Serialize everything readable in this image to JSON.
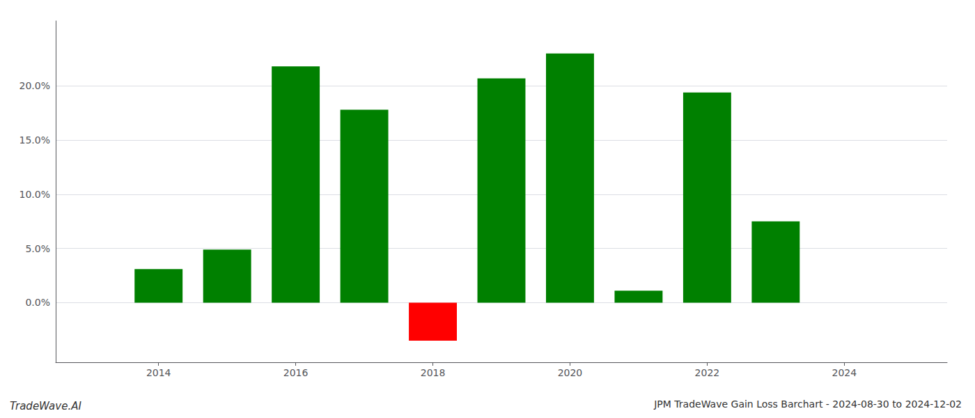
{
  "chart_data": {
    "type": "bar",
    "title": "JPM TradeWave Gain Loss Barchart - 2024-08-30 to 2024-12-02",
    "annotation": "TradeWave.AI",
    "x": [
      2014,
      2015,
      2016,
      2017,
      2018,
      2019,
      2020,
      2021,
      2022,
      2023
    ],
    "values": [
      0.031,
      0.049,
      0.218,
      0.178,
      -0.035,
      0.207,
      0.23,
      0.011,
      0.194,
      0.075
    ],
    "colors": [
      "#008000",
      "#008000",
      "#008000",
      "#008000",
      "#ff0000",
      "#008000",
      "#008000",
      "#008000",
      "#008000",
      "#008000"
    ],
    "xlim": [
      2012.5,
      2025.5
    ],
    "xticks": [
      2014,
      2016,
      2018,
      2020,
      2022,
      2024
    ],
    "ylim": [
      -0.055,
      0.26
    ],
    "yticks": [
      {
        "value": 0.0,
        "label": "0.0%"
      },
      {
        "value": 0.05,
        "label": "5.0%"
      },
      {
        "value": 0.1,
        "label": "10.0%"
      },
      {
        "value": 0.15,
        "label": "15.0%"
      },
      {
        "value": 0.2,
        "label": "20.0%"
      }
    ],
    "grid": true
  }
}
